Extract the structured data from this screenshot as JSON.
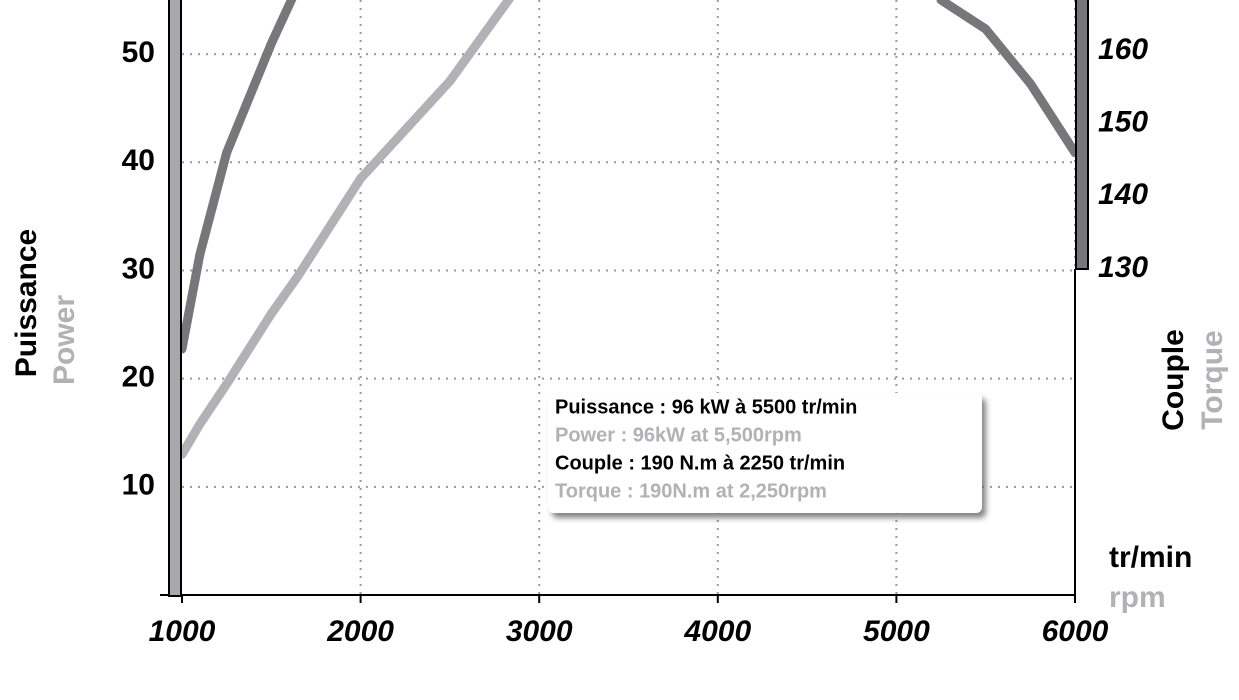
{
  "chart_data": {
    "type": "line",
    "x": [
      1000,
      1100,
      1250,
      1500,
      1650,
      2000,
      2500,
      2850,
      5250,
      5500,
      5750,
      6000
    ],
    "series": [
      {
        "name": "Power",
        "color": "#b1b1b6",
        "values": [
          13,
          15.8,
          19.5,
          26,
          29.5,
          38.5,
          47.5,
          55.5,
          null,
          null,
          null,
          null
        ]
      },
      {
        "name": "Torque",
        "color": "#77777a",
        "axis": "y2",
        "values": [
          119,
          132,
          146,
          161,
          169,
          null,
          null,
          null,
          167,
          163,
          155.5,
          146
        ]
      }
    ],
    "xlim": [
      1000,
      6000
    ],
    "xticks": [
      1000,
      2000,
      3000,
      4000,
      5000,
      6000
    ],
    "ylim": [
      0,
      55
    ],
    "yticks": [
      10,
      20,
      30,
      40,
      50
    ],
    "y2lim": [
      130,
      167
    ],
    "y2ticks": [
      130,
      140,
      150,
      160
    ],
    "grid": true,
    "ylabel": [
      "Puissance",
      "Power"
    ],
    "y2label": [
      "Couple",
      "Torque"
    ],
    "xlabel": [
      "tr/min",
      "rpm"
    ],
    "annotations": [
      "Puissance : 96 kW à 5500 tr/min",
      "Power : 96kW at 5,500rpm",
      "Couple : 190 N.m à 2250 tr/min",
      "Torque : 190N.m at 2,250rpm"
    ]
  }
}
